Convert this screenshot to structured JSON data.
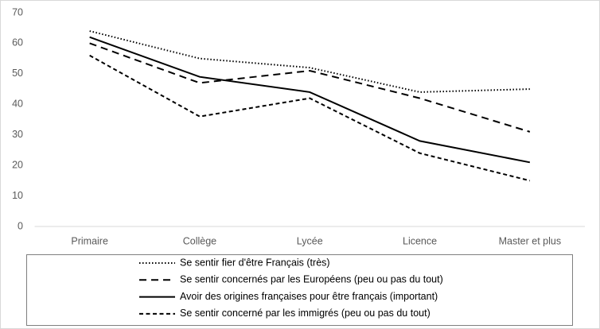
{
  "chart_data": {
    "type": "line",
    "categories": [
      "Primaire",
      "Collège",
      "Lycée",
      "Licence",
      "Master et plus"
    ],
    "series": [
      {
        "name": "Se sentir fier d'être Français (très)",
        "color": "#000000",
        "dash": "dotted",
        "values": [
          64,
          55,
          52,
          44,
          45
        ]
      },
      {
        "name": "Se sentir concernés par les Européens (peu ou pas du tout)",
        "color": "#000000",
        "dash": "dashed",
        "values": [
          60,
          47,
          51,
          42,
          31
        ]
      },
      {
        "name": "Avoir des origines françaises pour être français (important)",
        "color": "#000000",
        "dash": "solid",
        "values": [
          62,
          49,
          44,
          28,
          21
        ]
      },
      {
        "name": "Se sentir concerné par les immigrés (peu ou pas du tout)",
        "color": "#000000",
        "dash": "short-dashed",
        "values": [
          56,
          36,
          42,
          24,
          15
        ]
      }
    ],
    "ylim": [
      0,
      70
    ],
    "yticks": [
      0,
      10,
      20,
      30,
      40,
      50,
      60,
      70
    ],
    "grid": false,
    "legend": "bottom"
  }
}
